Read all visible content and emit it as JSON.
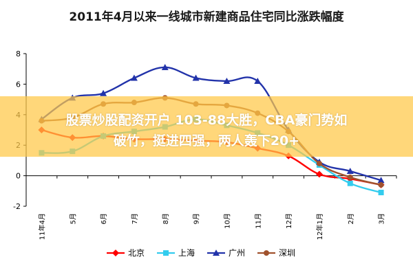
{
  "chart_data": {
    "type": "line",
    "title": "2011年4月以来一线城市新建商品住宅同比涨跌幅度",
    "categories": [
      "11年4月",
      "5月",
      "6月",
      "7月",
      "8月",
      "9月",
      "10月",
      "11月",
      "12月",
      "12年1月",
      "2月",
      "3月"
    ],
    "ylim": [
      -2,
      8
    ],
    "yticks": [
      "-2",
      "0",
      "2",
      "4",
      "6",
      "8"
    ],
    "legend_position": "bottom",
    "grid": false,
    "series": [
      {
        "name": "北京",
        "color": "#ff0000",
        "marker": "diamond",
        "values": [
          3.0,
          2.5,
          2.6,
          2.4,
          2.4,
          2.3,
          2.2,
          1.8,
          1.3,
          0.1,
          -0.2,
          -0.6
        ]
      },
      {
        "name": "上海",
        "color": "#33ccee",
        "marker": "square",
        "values": [
          1.5,
          1.6,
          2.6,
          2.9,
          3.2,
          3.7,
          3.3,
          2.8,
          2.0,
          0.7,
          -0.5,
          -1.1
        ]
      },
      {
        "name": "广州",
        "color": "#2233aa",
        "marker": "triangle",
        "values": [
          3.7,
          5.1,
          5.4,
          6.4,
          7.1,
          6.4,
          6.2,
          6.2,
          3.0,
          0.9,
          0.3,
          -0.3
        ]
      },
      {
        "name": "深圳",
        "color": "#a0522d",
        "marker": "circle",
        "values": [
          3.6,
          3.8,
          4.7,
          4.8,
          5.1,
          4.7,
          4.6,
          4.1,
          2.9,
          0.8,
          -0.1,
          -0.6
        ]
      }
    ]
  },
  "overlay": {
    "line1": "股票炒股配资开户 103-88大胜，CBA豪门势如",
    "line2": "破竹，挺进四强，两人轰下20+"
  }
}
